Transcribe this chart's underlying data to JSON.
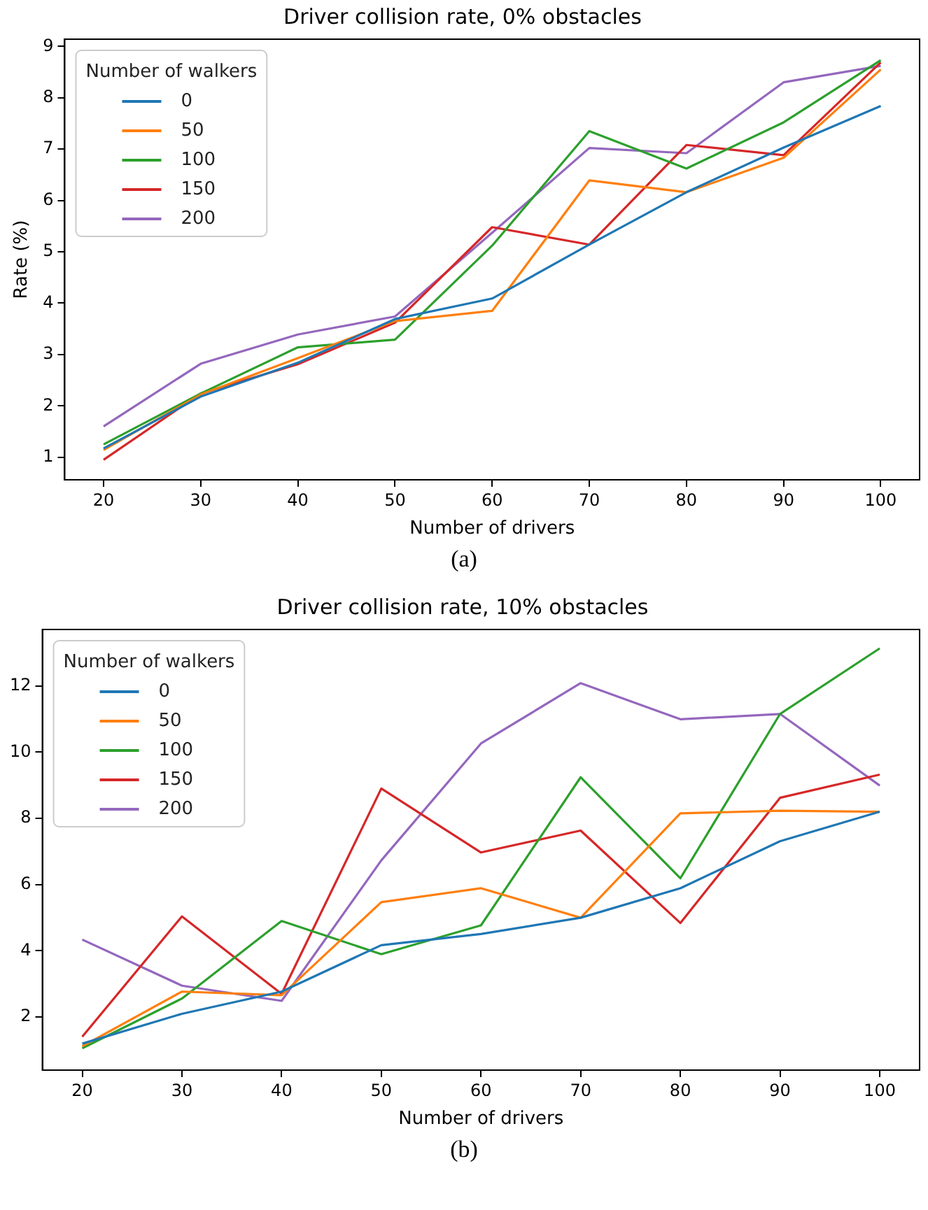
{
  "chart_data": [
    {
      "type": "line",
      "title": "Driver collision rate, 0% obstacles",
      "xlabel": "Number of drivers",
      "ylabel": "Rate (%)",
      "legend_title": "Number of walkers",
      "legend": "top left",
      "annotations": [
        "(a)"
      ],
      "x": [
        20,
        30,
        40,
        50,
        60,
        70,
        80,
        90,
        100
      ],
      "xlim": [
        16,
        104
      ],
      "xticks": [
        20,
        30,
        40,
        50,
        60,
        70,
        80,
        90,
        100
      ],
      "ylim": [
        0.56,
        9.14
      ],
      "yticks": [
        1,
        2,
        3,
        4,
        5,
        6,
        7,
        8,
        9
      ],
      "series": [
        {
          "name": "0",
          "color": "#1f77b4",
          "values": [
            1.17,
            2.18,
            2.84,
            3.69,
            4.09,
            5.14,
            6.16,
            7.03,
            7.84
          ]
        },
        {
          "name": "50",
          "color": "#ff7f0e",
          "values": [
            1.14,
            2.22,
            2.93,
            3.65,
            3.85,
            6.39,
            6.16,
            6.83,
            8.55
          ]
        },
        {
          "name": "100",
          "color": "#2ca02c",
          "values": [
            1.25,
            2.24,
            3.14,
            3.29,
            5.12,
            7.35,
            6.62,
            7.52,
            8.73
          ]
        },
        {
          "name": "150",
          "color": "#d62728",
          "values": [
            0.95,
            2.24,
            2.81,
            3.62,
            5.48,
            5.14,
            7.08,
            6.88,
            8.69
          ]
        },
        {
          "name": "200",
          "color": "#9467bd",
          "values": [
            1.6,
            2.82,
            3.39,
            3.74,
            5.37,
            7.02,
            6.92,
            8.3,
            8.62
          ]
        }
      ]
    },
    {
      "type": "line",
      "title": "Driver collision rate, 10% obstacles",
      "xlabel": "Number of drivers",
      "legend_title": "Number of walkers",
      "legend": "top left",
      "annotations": [
        "(b)"
      ],
      "x": [
        20,
        30,
        40,
        50,
        60,
        70,
        80,
        90,
        100
      ],
      "xlim": [
        16,
        104
      ],
      "xticks": [
        20,
        30,
        40,
        50,
        60,
        70,
        80,
        90,
        100
      ],
      "ylim": [
        0.4,
        13.7
      ],
      "yticks": [
        2,
        4,
        6,
        8,
        10,
        12
      ],
      "series": [
        {
          "name": "0",
          "color": "#1f77b4",
          "values": [
            1.2,
            2.1,
            2.77,
            4.17,
            4.51,
            5.0,
            5.89,
            7.31,
            8.2
          ]
        },
        {
          "name": "50",
          "color": "#ff7f0e",
          "values": [
            1.12,
            2.77,
            2.66,
            5.47,
            5.89,
            5.0,
            8.15,
            8.23,
            8.2
          ]
        },
        {
          "name": "100",
          "color": "#2ca02c",
          "values": [
            1.06,
            2.56,
            4.9,
            3.9,
            4.77,
            9.24,
            6.19,
            11.15,
            13.13
          ]
        },
        {
          "name": "150",
          "color": "#d62728",
          "values": [
            1.41,
            5.04,
            2.7,
            8.9,
            6.97,
            7.63,
            4.84,
            8.62,
            9.32
          ]
        },
        {
          "name": "200",
          "color": "#9467bd",
          "values": [
            4.34,
            2.95,
            2.49,
            6.73,
            10.26,
            12.08,
            10.99,
            11.15,
            8.99
          ]
        }
      ]
    }
  ]
}
